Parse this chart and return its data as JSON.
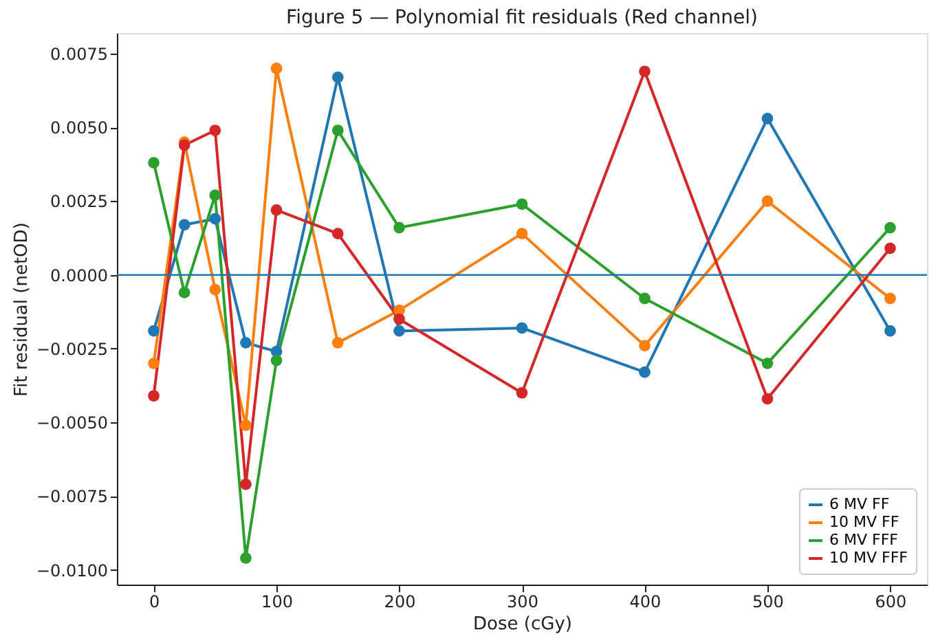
{
  "chart_data": {
    "type": "line",
    "title": "Figure 5 — Polynomial fit residuals (Red channel)",
    "xlabel": "Dose (cGy)",
    "ylabel": "Fit residual (netOD)",
    "x": [
      0,
      25,
      50,
      75,
      100,
      150,
      200,
      300,
      400,
      500,
      600
    ],
    "series": [
      {
        "name": "6 MV FF",
        "color": "#1f77b4",
        "values": [
          -0.0019,
          0.0017,
          0.0019,
          -0.0023,
          -0.0026,
          0.0067,
          -0.0019,
          -0.0018,
          -0.0033,
          0.0053,
          -0.0019
        ]
      },
      {
        "name": "10 MV FF",
        "color": "#ff7f0e",
        "values": [
          -0.003,
          0.0045,
          -0.0005,
          -0.0051,
          0.007,
          -0.0023,
          -0.0012,
          0.0014,
          -0.0024,
          0.0025,
          -0.0008
        ]
      },
      {
        "name": "6 MV FFF",
        "color": "#2ca02c",
        "values": [
          0.0038,
          -0.0006,
          0.0027,
          -0.0096,
          -0.0029,
          0.0049,
          0.0016,
          0.0024,
          -0.0008,
          -0.003,
          0.0016
        ]
      },
      {
        "name": "10 MV FFF",
        "color": "#d62728",
        "values": [
          -0.0041,
          0.0044,
          0.0049,
          -0.0071,
          0.0022,
          0.0014,
          -0.0015,
          -0.004,
          0.0069,
          -0.0042,
          0.0009
        ]
      }
    ],
    "xlim": [
      -30,
      630
    ],
    "xticks": [
      0,
      100,
      200,
      300,
      400,
      500,
      600
    ],
    "ylim": [
      -0.0105,
      0.0082
    ],
    "yticks": [
      {
        "value": -0.01,
        "label": "−0.0100"
      },
      {
        "value": -0.0075,
        "label": "−0.0075"
      },
      {
        "value": -0.005,
        "label": "−0.0050"
      },
      {
        "value": -0.0025,
        "label": "−0.0025"
      },
      {
        "value": 0,
        "label": "0.0000"
      },
      {
        "value": 0.0025,
        "label": "0.0025"
      },
      {
        "value": 0.005,
        "label": "0.0050"
      },
      {
        "value": 0.0075,
        "label": "0.0075"
      }
    ],
    "ref_lines": [
      {
        "axis": "y",
        "value": 0,
        "color": "#1f77b4"
      }
    ],
    "marker": "circle",
    "grid": false,
    "legend": "bottom right"
  }
}
